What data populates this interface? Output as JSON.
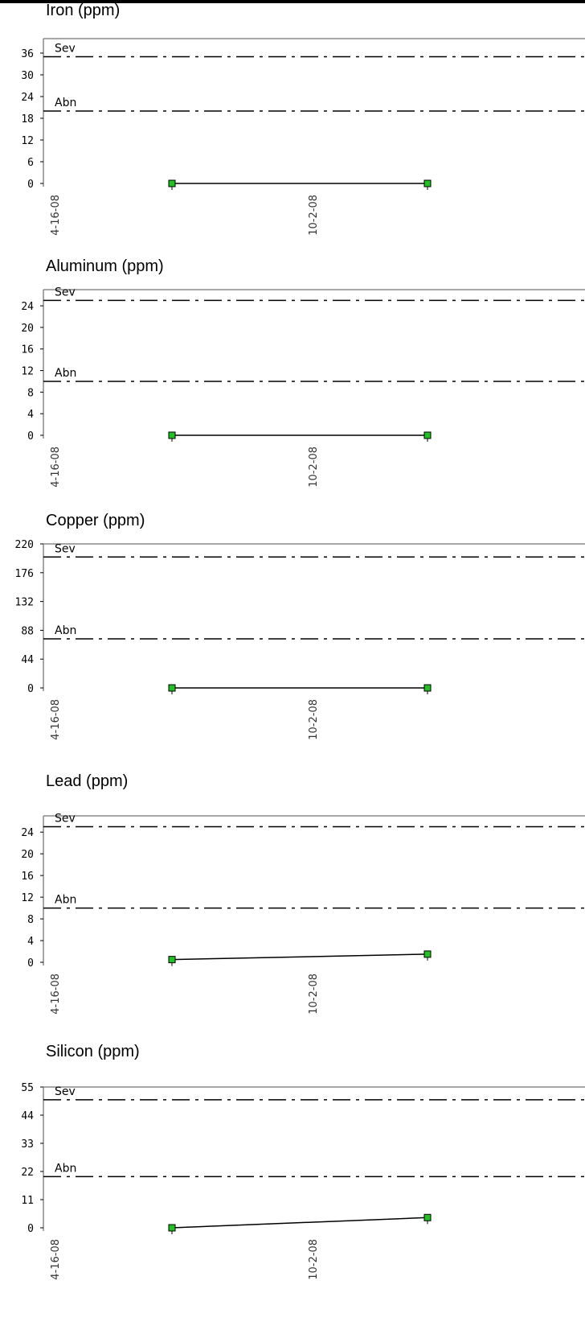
{
  "chart_data": [
    {
      "type": "line",
      "title": "Iron (ppm)",
      "yticks": [
        0,
        6,
        12,
        18,
        24,
        30,
        36
      ],
      "ylim": [
        0,
        40
      ],
      "x_ticks": [
        "4-16-08",
        "10-2-08"
      ],
      "series": [
        {
          "values": [
            0,
            0
          ],
          "color": "#22c022"
        }
      ],
      "limits": [
        {
          "label": "Sev",
          "value": 35
        },
        {
          "label": "Abn",
          "value": 20
        }
      ]
    },
    {
      "type": "line",
      "title": "Aluminum (ppm)",
      "yticks": [
        0,
        4,
        8,
        12,
        16,
        20,
        24
      ],
      "ylim": [
        0,
        27
      ],
      "x_ticks": [
        "4-16-08",
        "10-2-08"
      ],
      "series": [
        {
          "values": [
            0,
            0
          ],
          "color": "#22c022"
        }
      ],
      "limits": [
        {
          "label": "Sev",
          "value": 25
        },
        {
          "label": "Abn",
          "value": 10
        }
      ]
    },
    {
      "type": "line",
      "title": "Copper (ppm)",
      "yticks": [
        0,
        44,
        88,
        132,
        176,
        220
      ],
      "ylim": [
        0,
        220
      ],
      "x_ticks": [
        "4-16-08",
        "10-2-08"
      ],
      "series": [
        {
          "values": [
            0,
            0
          ],
          "color": "#22c022"
        }
      ],
      "limits": [
        {
          "label": "Sev",
          "value": 200
        },
        {
          "label": "Abn",
          "value": 75
        }
      ]
    },
    {
      "type": "line",
      "title": "Lead (ppm)",
      "yticks": [
        0,
        4,
        8,
        12,
        16,
        20,
        24
      ],
      "ylim": [
        0,
        27
      ],
      "x_ticks": [
        "4-16-08",
        "10-2-08"
      ],
      "series": [
        {
          "values": [
            0.5,
            1.5
          ],
          "color": "#22c022"
        }
      ],
      "limits": [
        {
          "label": "Sev",
          "value": 25
        },
        {
          "label": "Abn",
          "value": 10
        }
      ]
    },
    {
      "type": "line",
      "title": "Silicon (ppm)",
      "yticks": [
        0,
        11,
        22,
        33,
        44,
        55
      ],
      "ylim": [
        0,
        55
      ],
      "x_ticks": [
        "4-16-08",
        "10-2-08"
      ],
      "series": [
        {
          "values": [
            0,
            4
          ],
          "color": "#22c022"
        }
      ],
      "limits": [
        {
          "label": "Sev",
          "value": 50
        },
        {
          "label": "Abn",
          "value": 20
        }
      ]
    }
  ]
}
